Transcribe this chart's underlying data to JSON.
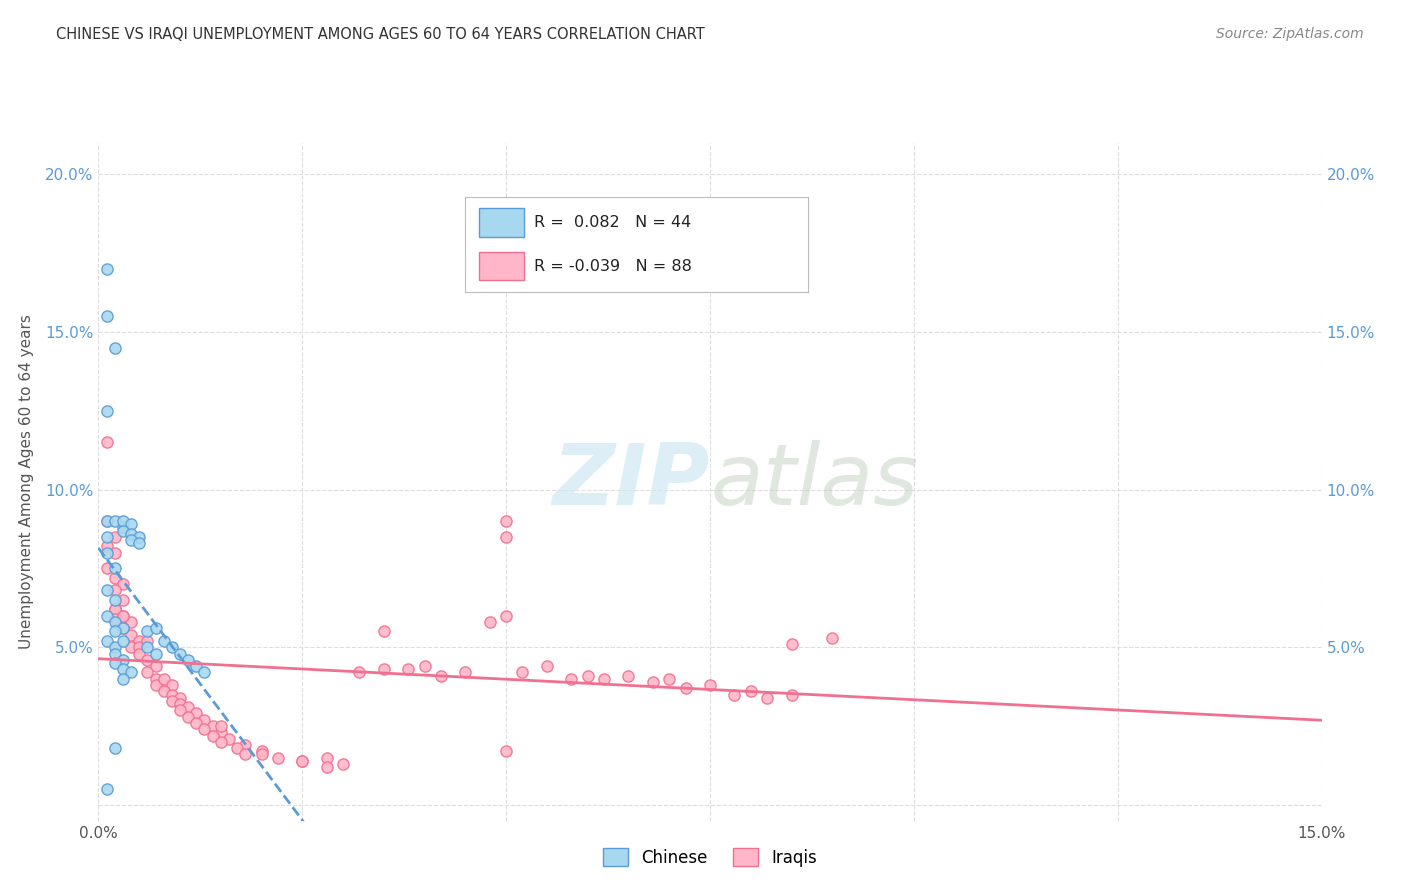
{
  "title": "CHINESE VS IRAQI UNEMPLOYMENT AMONG AGES 60 TO 64 YEARS CORRELATION CHART",
  "source": "Source: ZipAtlas.com",
  "ylabel": "Unemployment Among Ages 60 to 64 years",
  "xlim": [
    0.0,
    0.15
  ],
  "ylim": [
    -0.005,
    0.21
  ],
  "xticks": [
    0.0,
    0.025,
    0.05,
    0.075,
    0.1,
    0.125,
    0.15
  ],
  "xtick_labels": [
    "0.0%",
    "",
    "",
    "",
    "",
    "",
    "15.0%"
  ],
  "yticks": [
    0.0,
    0.05,
    0.1,
    0.15,
    0.2
  ],
  "ytick_labels": [
    "",
    "5.0%",
    "10.0%",
    "15.0%",
    "20.0%"
  ],
  "chinese_color": "#a8d8f0",
  "iraqi_color": "#ffb6c8",
  "chinese_edge_color": "#5b9bd5",
  "iraqi_edge_color": "#f07090",
  "trendline_chinese_color": "#5b9bd5",
  "trendline_iraqi_color": "#f07090",
  "watermark_zip": "ZIP",
  "watermark_atlas": "atlas",
  "legend_R_chinese": "R =  0.082",
  "legend_N_chinese": "N = 44",
  "legend_R_iraqi": "R = -0.039",
  "legend_N_iraqi": "N = 88",
  "chinese_x": [
    0.001,
    0.001,
    0.002,
    0.001,
    0.001,
    0.001,
    0.002,
    0.001,
    0.002,
    0.001,
    0.002,
    0.001,
    0.002,
    0.003,
    0.002,
    0.001,
    0.003,
    0.003,
    0.004,
    0.003,
    0.004,
    0.005,
    0.004,
    0.005,
    0.002,
    0.003,
    0.002,
    0.003,
    0.002,
    0.003,
    0.004,
    0.003,
    0.006,
    0.007,
    0.006,
    0.007,
    0.008,
    0.009,
    0.01,
    0.011,
    0.012,
    0.013,
    0.002,
    0.001
  ],
  "chinese_y": [
    0.17,
    0.155,
    0.145,
    0.125,
    0.09,
    0.085,
    0.09,
    0.08,
    0.075,
    0.068,
    0.065,
    0.06,
    0.058,
    0.056,
    0.055,
    0.052,
    0.088,
    0.09,
    0.089,
    0.087,
    0.086,
    0.085,
    0.084,
    0.083,
    0.05,
    0.052,
    0.048,
    0.046,
    0.045,
    0.043,
    0.042,
    0.04,
    0.055,
    0.056,
    0.05,
    0.048,
    0.052,
    0.05,
    0.048,
    0.046,
    0.044,
    0.042,
    0.018,
    0.005
  ],
  "iraqi_x": [
    0.001,
    0.001,
    0.002,
    0.001,
    0.002,
    0.001,
    0.002,
    0.003,
    0.002,
    0.003,
    0.002,
    0.003,
    0.004,
    0.003,
    0.004,
    0.005,
    0.004,
    0.005,
    0.006,
    0.005,
    0.006,
    0.007,
    0.006,
    0.007,
    0.008,
    0.007,
    0.008,
    0.009,
    0.008,
    0.009,
    0.01,
    0.009,
    0.01,
    0.011,
    0.01,
    0.012,
    0.011,
    0.013,
    0.012,
    0.014,
    0.013,
    0.015,
    0.014,
    0.016,
    0.015,
    0.018,
    0.017,
    0.02,
    0.018,
    0.022,
    0.025,
    0.02,
    0.028,
    0.025,
    0.03,
    0.028,
    0.035,
    0.032,
    0.04,
    0.038,
    0.045,
    0.042,
    0.05,
    0.048,
    0.055,
    0.052,
    0.06,
    0.058,
    0.065,
    0.062,
    0.07,
    0.068,
    0.075,
    0.072,
    0.08,
    0.078,
    0.085,
    0.082,
    0.09,
    0.085,
    0.05,
    0.05,
    0.05,
    0.035,
    0.015,
    0.002,
    0.002,
    0.003
  ],
  "iraqi_y": [
    0.115,
    0.09,
    0.085,
    0.082,
    0.08,
    0.075,
    0.072,
    0.07,
    0.068,
    0.065,
    0.062,
    0.06,
    0.058,
    0.056,
    0.054,
    0.052,
    0.05,
    0.05,
    0.052,
    0.048,
    0.046,
    0.044,
    0.042,
    0.04,
    0.038,
    0.038,
    0.04,
    0.038,
    0.036,
    0.035,
    0.034,
    0.033,
    0.032,
    0.031,
    0.03,
    0.029,
    0.028,
    0.027,
    0.026,
    0.025,
    0.024,
    0.023,
    0.022,
    0.021,
    0.02,
    0.019,
    0.018,
    0.017,
    0.016,
    0.015,
    0.014,
    0.016,
    0.015,
    0.014,
    0.013,
    0.012,
    0.043,
    0.042,
    0.044,
    0.043,
    0.042,
    0.041,
    0.06,
    0.058,
    0.044,
    0.042,
    0.041,
    0.04,
    0.041,
    0.04,
    0.04,
    0.039,
    0.038,
    0.037,
    0.036,
    0.035,
    0.035,
    0.034,
    0.053,
    0.051,
    0.09,
    0.085,
    0.017,
    0.055,
    0.025,
    0.062,
    0.059,
    0.06
  ],
  "background_color": "#ffffff",
  "grid_color": "#dddddd"
}
